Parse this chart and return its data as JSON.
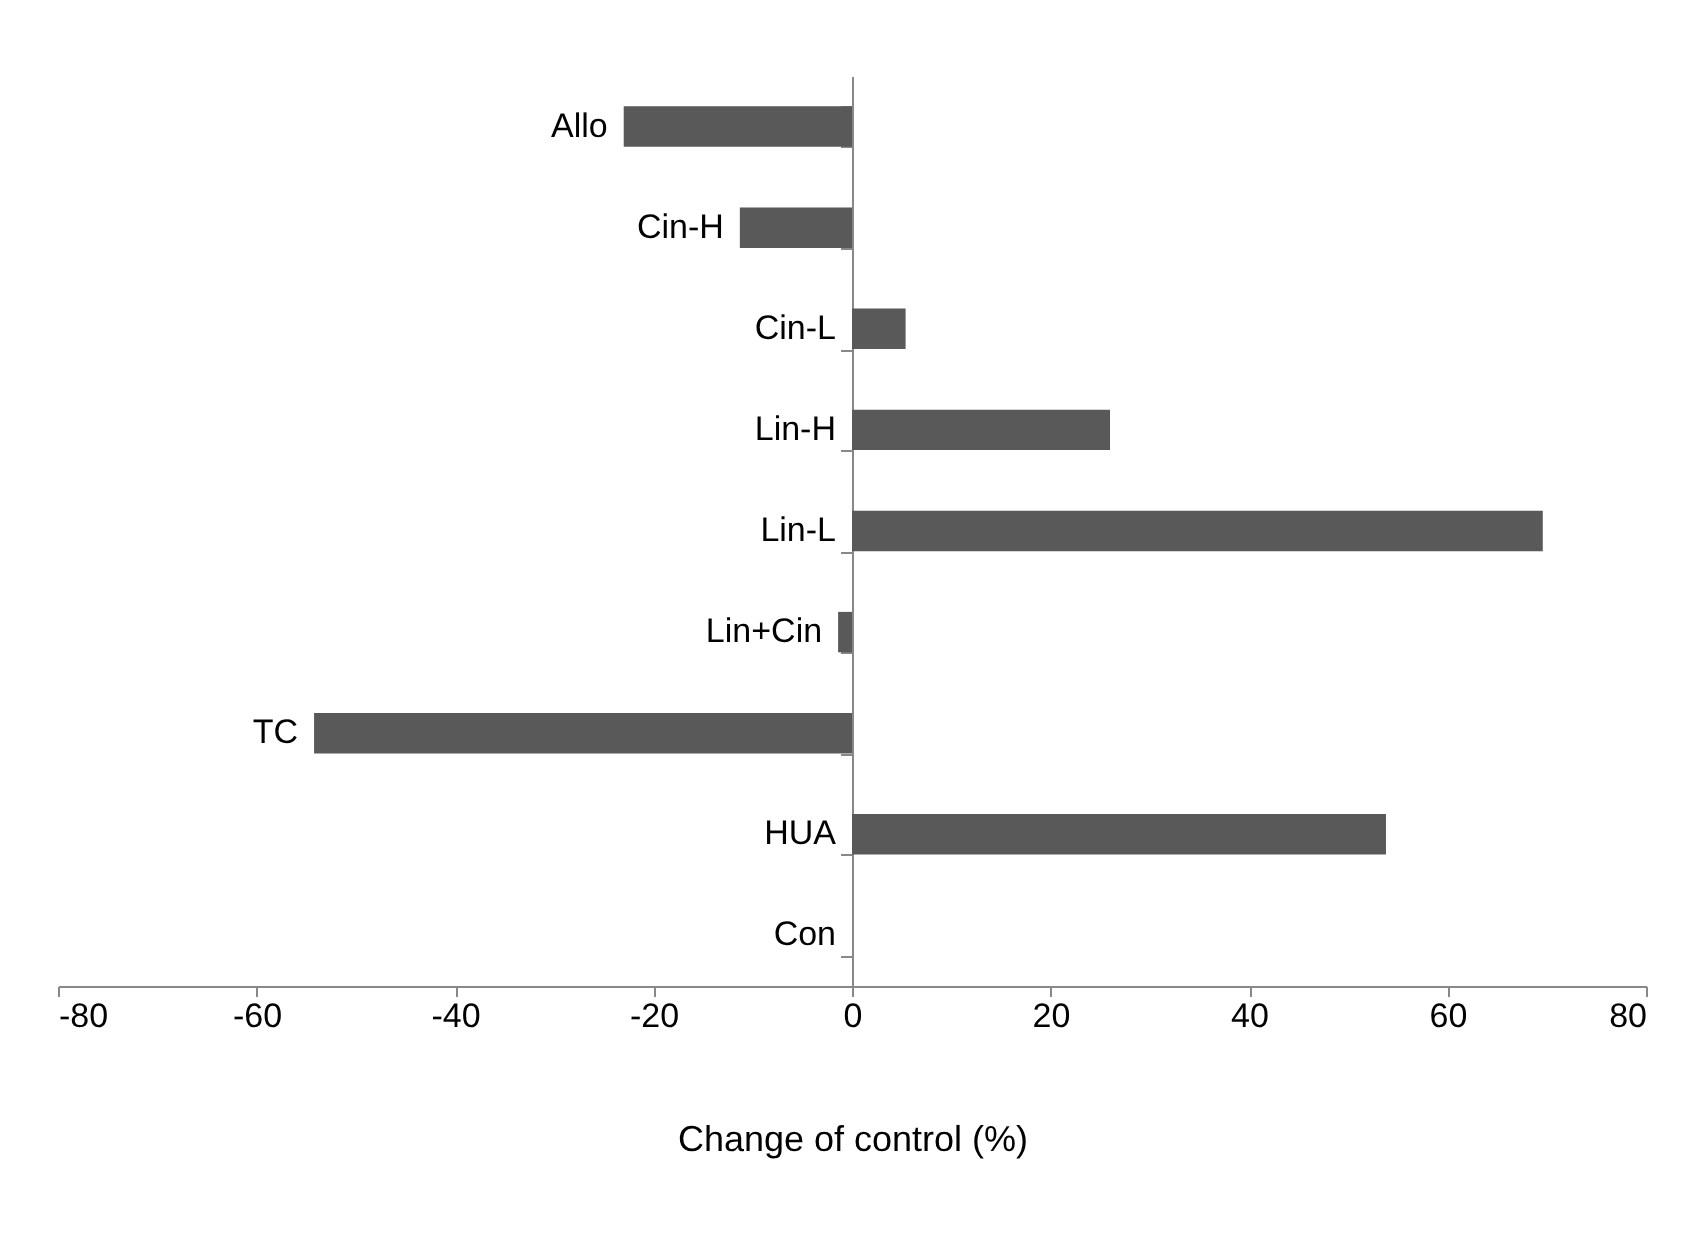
{
  "chart_data": {
    "type": "bar",
    "orientation": "horizontal",
    "xlabel": "Change  of control (%)",
    "categories": [
      "Allo",
      "Cin-H",
      "Cin-L",
      "Lin-H",
      "Lin-L",
      "Lin+Cin",
      "TC",
      "HUA",
      "Con"
    ],
    "values": [
      -23.0,
      -11.3,
      5.4,
      26.0,
      69.6,
      -1.4,
      -54.2,
      53.8,
      0
    ],
    "color": "#595959",
    "xlim": [
      -80,
      80
    ],
    "xticks": [
      -80,
      -60,
      -40,
      -20,
      0,
      20,
      40,
      60,
      80
    ],
    "grid": false
  }
}
